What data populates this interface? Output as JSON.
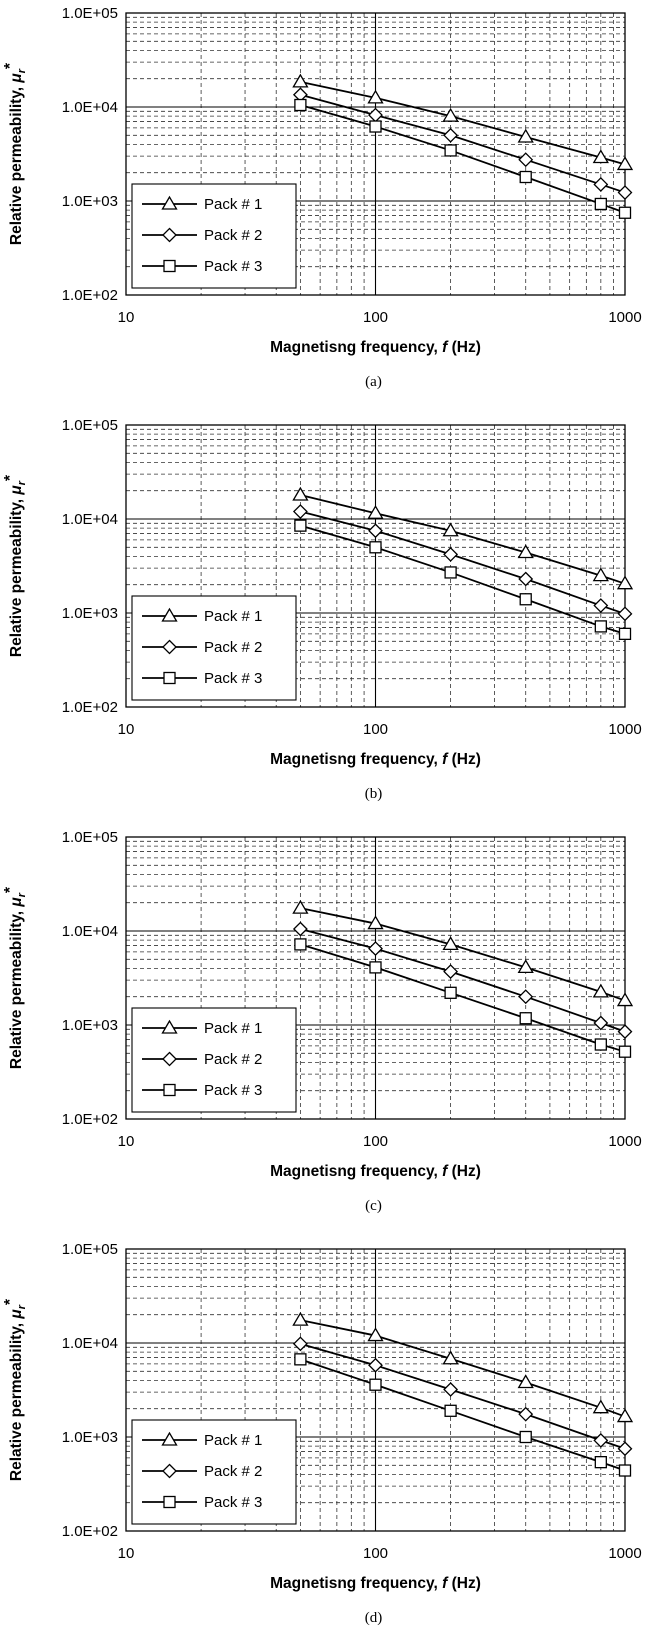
{
  "chart_data": [
    {
      "type": "line",
      "caption": "(a)",
      "xlabel": "Magnetisng frequency, f (Hz)",
      "ylabel": "Relative permeability, μr*",
      "xscale": "log",
      "yscale": "log",
      "xlim": [
        10,
        1000
      ],
      "ylim": [
        100,
        100000
      ],
      "xticks": [
        "10",
        "100",
        "1000"
      ],
      "yticks": [
        "1.0E+02",
        "1.0E+03",
        "1.0E+04",
        "1.0E+05"
      ],
      "grid": true,
      "legend": "bottom-left",
      "x": [
        50,
        100,
        200,
        400,
        800,
        1000
      ],
      "series": [
        {
          "name": "Pack # 1",
          "marker": "triangle",
          "values": [
            18500,
            12500,
            8000,
            4800,
            2900,
            2450
          ]
        },
        {
          "name": "Pack # 2",
          "marker": "diamond",
          "values": [
            13500,
            8200,
            5000,
            2750,
            1500,
            1230
          ]
        },
        {
          "name": "Pack # 3",
          "marker": "square",
          "values": [
            10500,
            6200,
            3450,
            1800,
            930,
            750
          ]
        }
      ]
    },
    {
      "type": "line",
      "caption": "(b)",
      "xlabel": "Magnetisng frequency, f (Hz)",
      "ylabel": "Relative permeability, μr*",
      "xscale": "log",
      "yscale": "log",
      "xlim": [
        10,
        1000
      ],
      "ylim": [
        100,
        100000
      ],
      "xticks": [
        "10",
        "100",
        "1000"
      ],
      "yticks": [
        "1.0E+02",
        "1.0E+03",
        "1.0E+04",
        "1.0E+05"
      ],
      "grid": true,
      "legend": "bottom-left",
      "x": [
        50,
        100,
        200,
        400,
        800,
        1000
      ],
      "series": [
        {
          "name": "Pack # 1",
          "marker": "triangle",
          "values": [
            18000,
            11500,
            7500,
            4400,
            2500,
            2050
          ]
        },
        {
          "name": "Pack # 2",
          "marker": "diamond",
          "values": [
            12000,
            7500,
            4200,
            2300,
            1200,
            980
          ]
        },
        {
          "name": "Pack # 3",
          "marker": "square",
          "values": [
            8500,
            5000,
            2700,
            1400,
            720,
            600
          ]
        }
      ]
    },
    {
      "type": "line",
      "caption": "(c)",
      "xlabel": "Magnetisng frequency, f (Hz)",
      "ylabel": "Relative permeability, μr*",
      "xscale": "log",
      "yscale": "log",
      "xlim": [
        10,
        1000
      ],
      "ylim": [
        100,
        100000
      ],
      "xticks": [
        "10",
        "100",
        "1000"
      ],
      "yticks": [
        "1.0E+02",
        "1.0E+03",
        "1.0E+04",
        "1.0E+05"
      ],
      "grid": true,
      "legend": "bottom-left",
      "x": [
        50,
        100,
        200,
        400,
        800,
        1000
      ],
      "series": [
        {
          "name": "Pack # 1",
          "marker": "triangle",
          "values": [
            17500,
            12000,
            7200,
            4100,
            2250,
            1820
          ]
        },
        {
          "name": "Pack # 2",
          "marker": "diamond",
          "values": [
            10500,
            6500,
            3700,
            2000,
            1050,
            850
          ]
        },
        {
          "name": "Pack # 3",
          "marker": "square",
          "values": [
            7200,
            4100,
            2200,
            1180,
            620,
            520
          ]
        }
      ]
    },
    {
      "type": "line",
      "caption": "(d)",
      "xlabel": "Magnetisng frequency, f (Hz)",
      "ylabel": "Relative permeability, μr*",
      "xscale": "log",
      "yscale": "log",
      "xlim": [
        10,
        1000
      ],
      "ylim": [
        100,
        100000
      ],
      "xticks": [
        "10",
        "100",
        "1000"
      ],
      "yticks": [
        "1.0E+02",
        "1.0E+03",
        "1.0E+04",
        "1.0E+05"
      ],
      "grid": true,
      "legend": "bottom-left",
      "x": [
        50,
        100,
        200,
        400,
        800,
        1000
      ],
      "series": [
        {
          "name": "Pack # 1",
          "marker": "triangle",
          "values": [
            17500,
            12000,
            6800,
            3800,
            2050,
            1650
          ]
        },
        {
          "name": "Pack # 2",
          "marker": "diamond",
          "values": [
            9800,
            5800,
            3200,
            1750,
            920,
            750
          ]
        },
        {
          "name": "Pack # 3",
          "marker": "square",
          "values": [
            6700,
            3600,
            1900,
            1000,
            540,
            440
          ]
        }
      ]
    }
  ]
}
